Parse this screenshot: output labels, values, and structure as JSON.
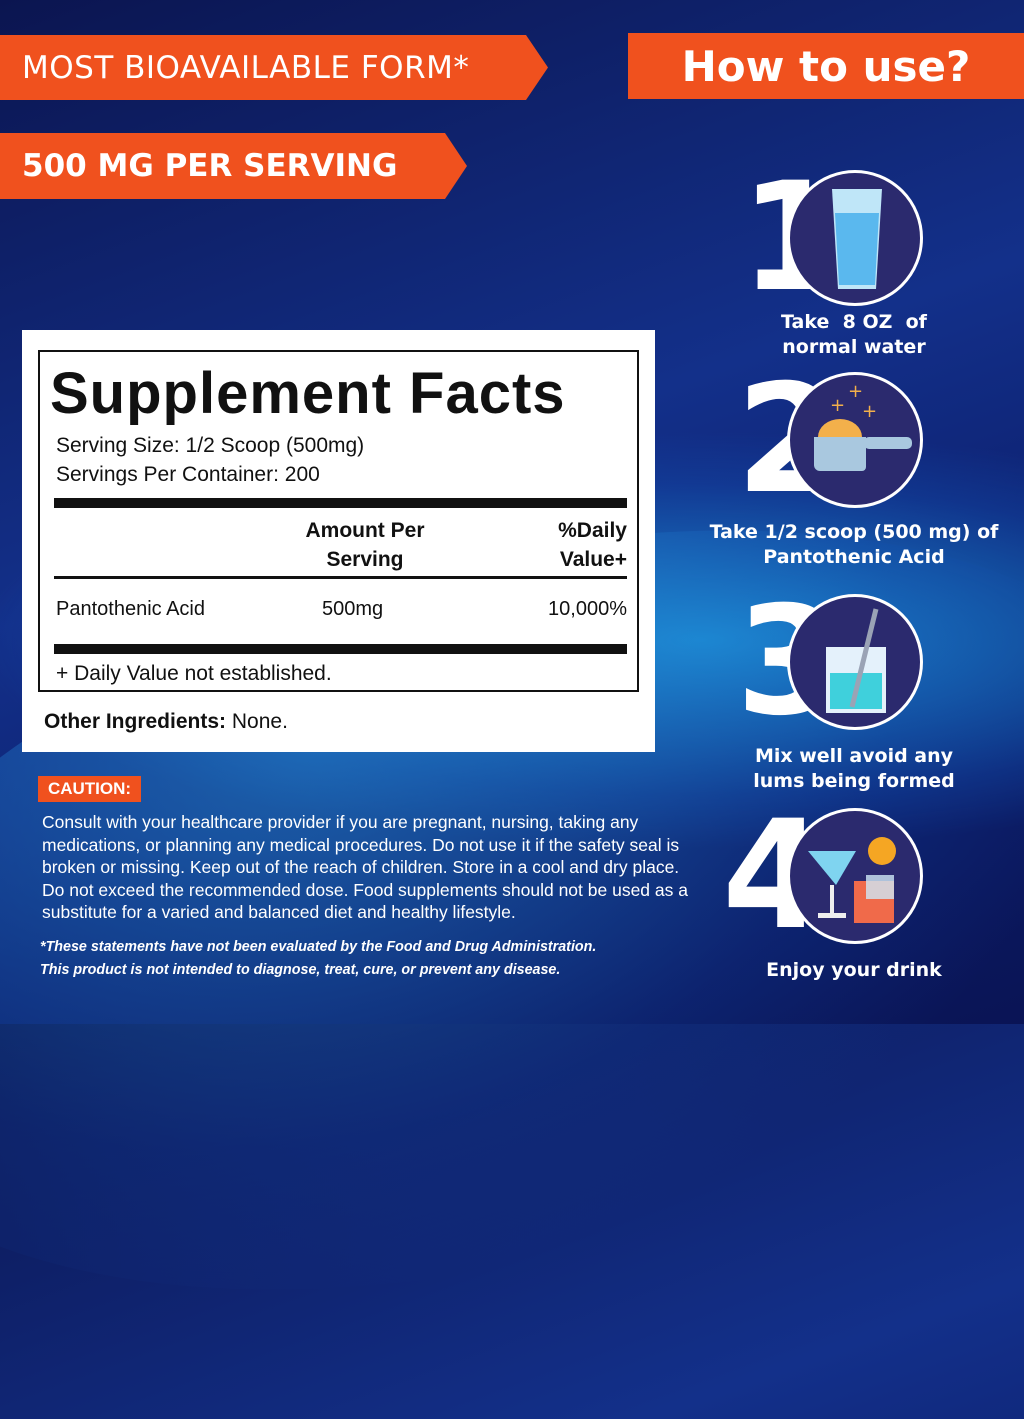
{
  "banners": {
    "form": "MOST BIOAVAILABLE FORM*",
    "serving": "500 MG PER SERVING",
    "how_to_use": "How to use?"
  },
  "facts": {
    "title": "Supplement Facts",
    "serving_size": "Serving Size: 1/2 Scoop (500mg)",
    "servings_per_container": "Servings Per Container: 200",
    "col_amount_1": "Amount Per",
    "col_amount_2": "Serving",
    "col_dv_1": "%Daily",
    "col_dv_2": "Value+",
    "rows": [
      {
        "name": "Pantothenic Acid",
        "amount": "500mg",
        "dv": "10,000%"
      }
    ],
    "footnote": "+ Daily Value not established.",
    "other_label": "Other Ingredients:",
    "other_value": " None."
  },
  "steps": [
    {
      "number": "1",
      "icon": "water-glass-icon",
      "line1": "Take  8 OZ  of",
      "line2": "normal water"
    },
    {
      "number": "2",
      "icon": "powder-scoop-icon",
      "line1": "Take 1/2 scoop (500 mg) of",
      "line2": "Pantothenic Acid"
    },
    {
      "number": "3",
      "icon": "mixing-beaker-icon",
      "line1": "Mix well avoid any",
      "line2": "lums being formed"
    },
    {
      "number": "4",
      "icon": "drinks-icon",
      "line1": "Enjoy your drink",
      "line2": ""
    }
  ],
  "caution": {
    "label": "CAUTION:",
    "text": "Consult with your healthcare provider if you are pregnant, nursing, taking any medications, or planning any medical procedures. Do not use it if the safety seal is broken or missing. Keep out of the reach of children. Store in a cool and dry place. Do not exceed the recommended dose. Food supplements should not be used as a substitute for a varied and balanced diet and healthy lifestyle."
  },
  "disclaimer": {
    "line1": "*These statements have not been evaluated by the Food and Drug Administration.",
    "line2": "This product is not intended to diagnose, treat, cure, or prevent any disease."
  },
  "colors": {
    "accent": "#f0511e",
    "background": "#0d1a5c",
    "circle": "#2b2a6e"
  }
}
